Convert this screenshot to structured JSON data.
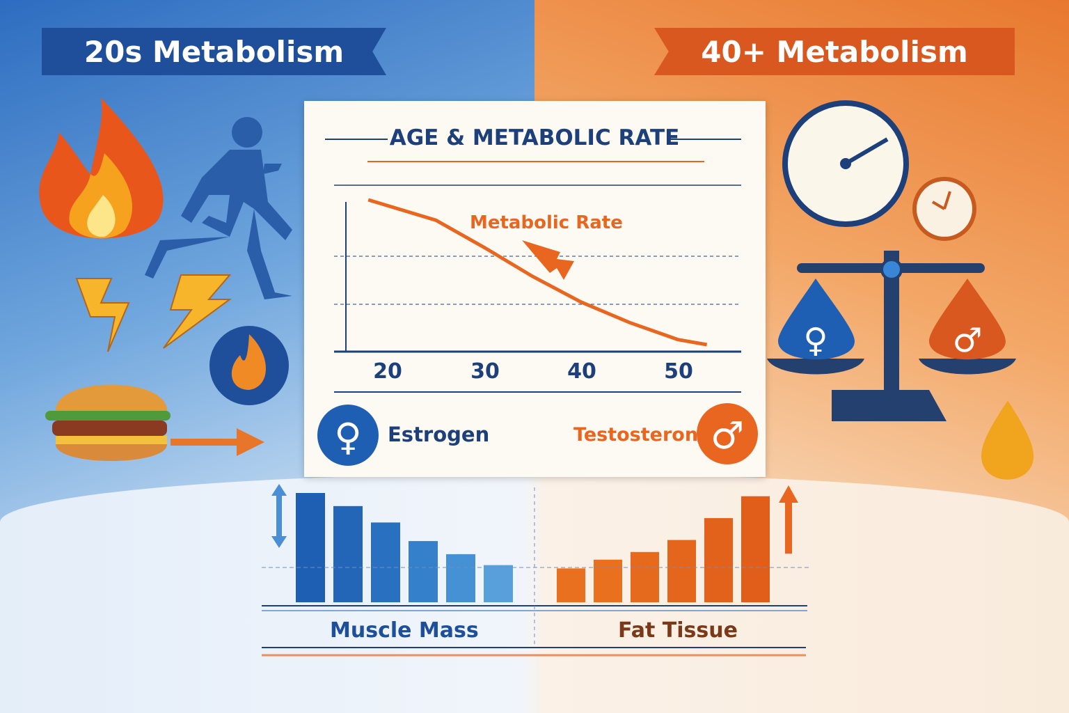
{
  "banners": {
    "left": "20s Metabolism",
    "right": "40+ Metabolism"
  },
  "card": {
    "title": "AGE & METABOLIC RATE",
    "curve_label": "Metabolic Rate",
    "estrogen": "Estrogen",
    "testosterone": "Testosterone"
  },
  "colors": {
    "blue": "#1f4f9a",
    "orange": "#e8661f",
    "card": "#fdfaf3"
  },
  "icons": [
    "flame-icon",
    "runner-icon",
    "lightning-icon",
    "burger-icon",
    "clock-icon",
    "scale-icon",
    "female-symbol-icon",
    "male-symbol-icon",
    "drop-icon"
  ],
  "chart_data": [
    {
      "type": "line",
      "title": "AGE & METABOLIC RATE",
      "x_ticks": [
        "20",
        "30",
        "40",
        "50"
      ],
      "series": [
        {
          "name": "Metabolic Rate",
          "x": [
            18,
            25,
            30,
            35,
            40,
            45,
            50,
            53
          ],
          "y": [
            100,
            88,
            72,
            55,
            40,
            28,
            18,
            15
          ]
        }
      ],
      "ylabel": "",
      "xlabel": "",
      "grid": true
    },
    {
      "type": "bar",
      "xlabel": "Muscle Mass",
      "values": [
        100,
        88,
        73,
        56,
        44,
        34
      ],
      "trend": "decreasing"
    },
    {
      "type": "bar",
      "xlabel": "Fat Tissue",
      "values": [
        31,
        39,
        46,
        57,
        77,
        97
      ],
      "trend": "increasing"
    }
  ]
}
